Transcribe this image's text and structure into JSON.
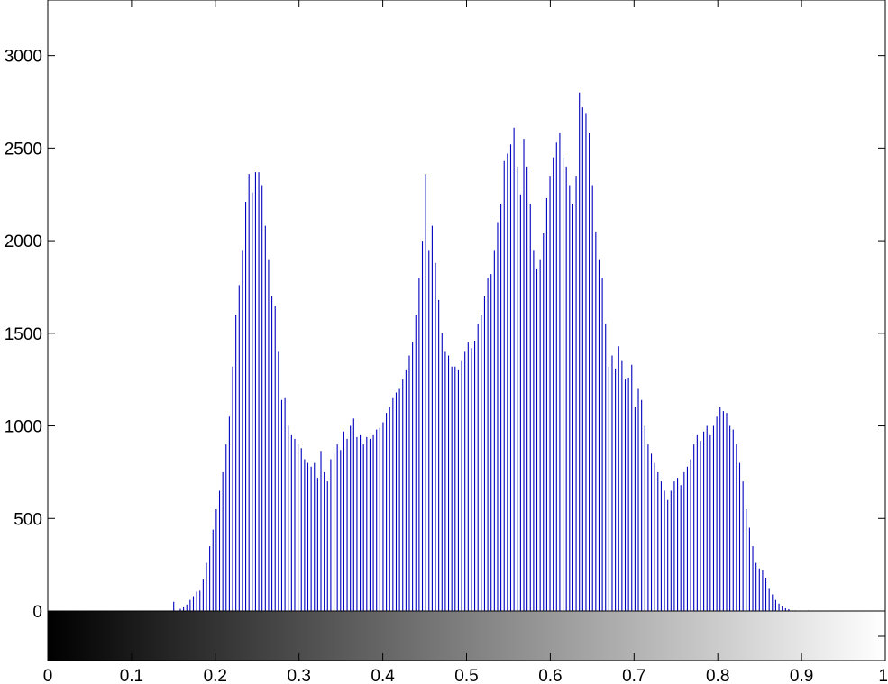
{
  "chart_data": {
    "type": "bar",
    "title": "",
    "xlabel": "",
    "ylabel": "",
    "xlim": [
      0,
      1
    ],
    "ylim": [
      0,
      3300
    ],
    "xticks": [
      "0",
      "0.1",
      "0.2",
      "0.3",
      "0.4",
      "0.5",
      "0.6",
      "0.7",
      "0.8",
      "0.9",
      "1"
    ],
    "yticks": [
      "0",
      "500",
      "1000",
      "1500",
      "2000",
      "2500",
      "3000"
    ],
    "grid": false,
    "legend": "none",
    "bar_color": "#0000bf",
    "colorbar": {
      "from_color": "#000000",
      "to_color": "#ffffff",
      "range": [
        0,
        1
      ]
    },
    "bins": 256,
    "series": [
      {
        "values": [
          0,
          0,
          0,
          0,
          0,
          0,
          0,
          0,
          0,
          0,
          0,
          0,
          0,
          0,
          0,
          0,
          0,
          0,
          0,
          0,
          0,
          0,
          0,
          0,
          0,
          0,
          0,
          0,
          0,
          0,
          0,
          0,
          0,
          0,
          0,
          0,
          0,
          0,
          50,
          0,
          12,
          20,
          35,
          60,
          80,
          105,
          110,
          170,
          260,
          350,
          440,
          550,
          650,
          750,
          900,
          1050,
          1320,
          1600,
          1760,
          1950,
          2210,
          2360,
          2260,
          2370,
          2370,
          2300,
          2080,
          1900,
          1700,
          1650,
          1400,
          1140,
          1150,
          1000,
          950,
          930,
          900,
          880,
          820,
          800,
          780,
          800,
          720,
          860,
          750,
          700,
          820,
          850,
          900,
          870,
          970,
          930,
          1000,
          1040,
          940,
          950,
          900,
          940,
          930,
          950,
          980,
          990,
          1020,
          1070,
          1100,
          1150,
          1180,
          1200,
          1250,
          1300,
          1380,
          1450,
          1600,
          1800,
          2000,
          2360,
          1950,
          2080,
          1880,
          1680,
          1500,
          1400,
          1380,
          1320,
          1320,
          1300,
          1350,
          1400,
          1450,
          1420,
          1460,
          1550,
          1600,
          1700,
          1800,
          1820,
          1950,
          2100,
          2200,
          2430,
          2470,
          2520,
          2610,
          2400,
          2250,
          2550,
          2400,
          2200,
          1950,
          1850,
          1900,
          2040,
          2230,
          2350,
          2450,
          2530,
          2580,
          2450,
          2400,
          2300,
          2200,
          2350,
          2800,
          2720,
          2690,
          2580,
          2300,
          2050,
          1900,
          1800,
          1550,
          1320,
          1380,
          1310,
          1430,
          1350,
          1250,
          1260,
          1330,
          1100,
          1200,
          1140,
          1000,
          900,
          850,
          800,
          750,
          700,
          650,
          600,
          650,
          700,
          720,
          680,
          750,
          780,
          820,
          900,
          950,
          920,
          970,
          1000,
          950,
          1000,
          1050,
          1100,
          1080,
          1070,
          1000,
          980,
          900,
          800,
          700,
          550,
          450,
          350,
          260,
          230,
          220,
          180,
          120,
          90,
          60,
          40,
          25,
          15,
          10,
          5,
          3,
          2,
          0,
          0,
          3,
          0,
          0,
          0,
          0,
          0,
          0,
          0,
          0,
          0,
          0,
          0,
          0,
          0,
          0,
          0,
          0,
          0
        ]
      }
    ]
  }
}
